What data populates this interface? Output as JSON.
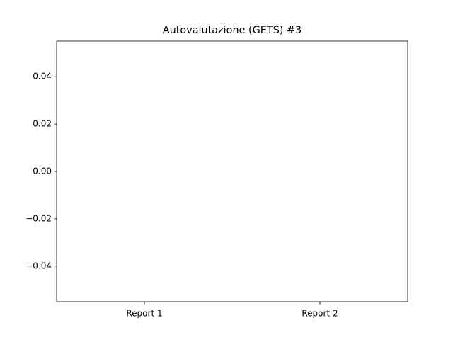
{
  "chart_data": {
    "type": "bar",
    "title": "Autovalutazione (GETS) #3",
    "categories": [
      "Report 1",
      "Report 2"
    ],
    "values": [
      0,
      0
    ],
    "color": "#1f77b4",
    "ylim": [
      -0.055,
      0.055
    ],
    "yticks": [
      {
        "value": -0.04,
        "label": "−0.04"
      },
      {
        "value": -0.02,
        "label": "−0.02"
      },
      {
        "value": 0,
        "label": "0.00"
      },
      0.02,
      0.04
    ],
    "grid": false
  }
}
